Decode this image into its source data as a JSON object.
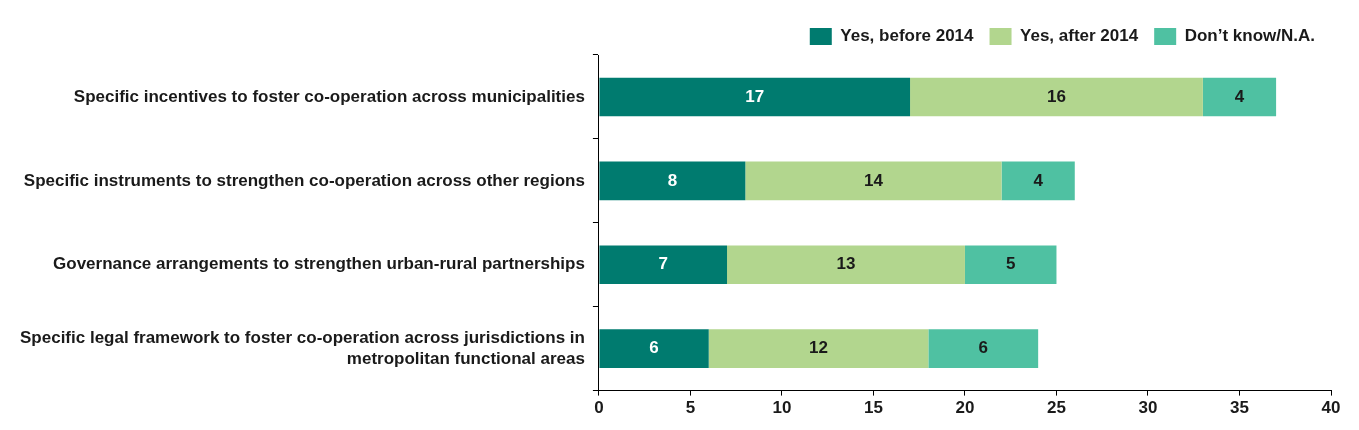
{
  "chart_data": {
    "type": "bar",
    "orientation": "horizontal",
    "stacked": true,
    "categories": [
      "Specific incentives to foster co-operation across municipalities",
      "Specific instruments to strengthen co-operation across other regions",
      "Governance arrangements to strengthen urban-rural partnerships",
      "Specific legal framework to foster co-operation across jurisdictions in metropolitan functional areas"
    ],
    "series": [
      {
        "name": "Yes, before 2014",
        "color": "#007b6f",
        "values": [
          17,
          8,
          7,
          6
        ]
      },
      {
        "name": "Yes, after 2014",
        "color": "#b2d68e",
        "values": [
          16,
          14,
          13,
          12
        ]
      },
      {
        "name": "Don’t know/N.A.",
        "color": "#4fc1a2",
        "values": [
          4,
          4,
          5,
          6
        ]
      }
    ],
    "xlim": [
      0,
      40
    ],
    "xticks": [
      0,
      5,
      10,
      15,
      20,
      25,
      30,
      35,
      40
    ],
    "data_labels": true,
    "legend": "top right"
  }
}
